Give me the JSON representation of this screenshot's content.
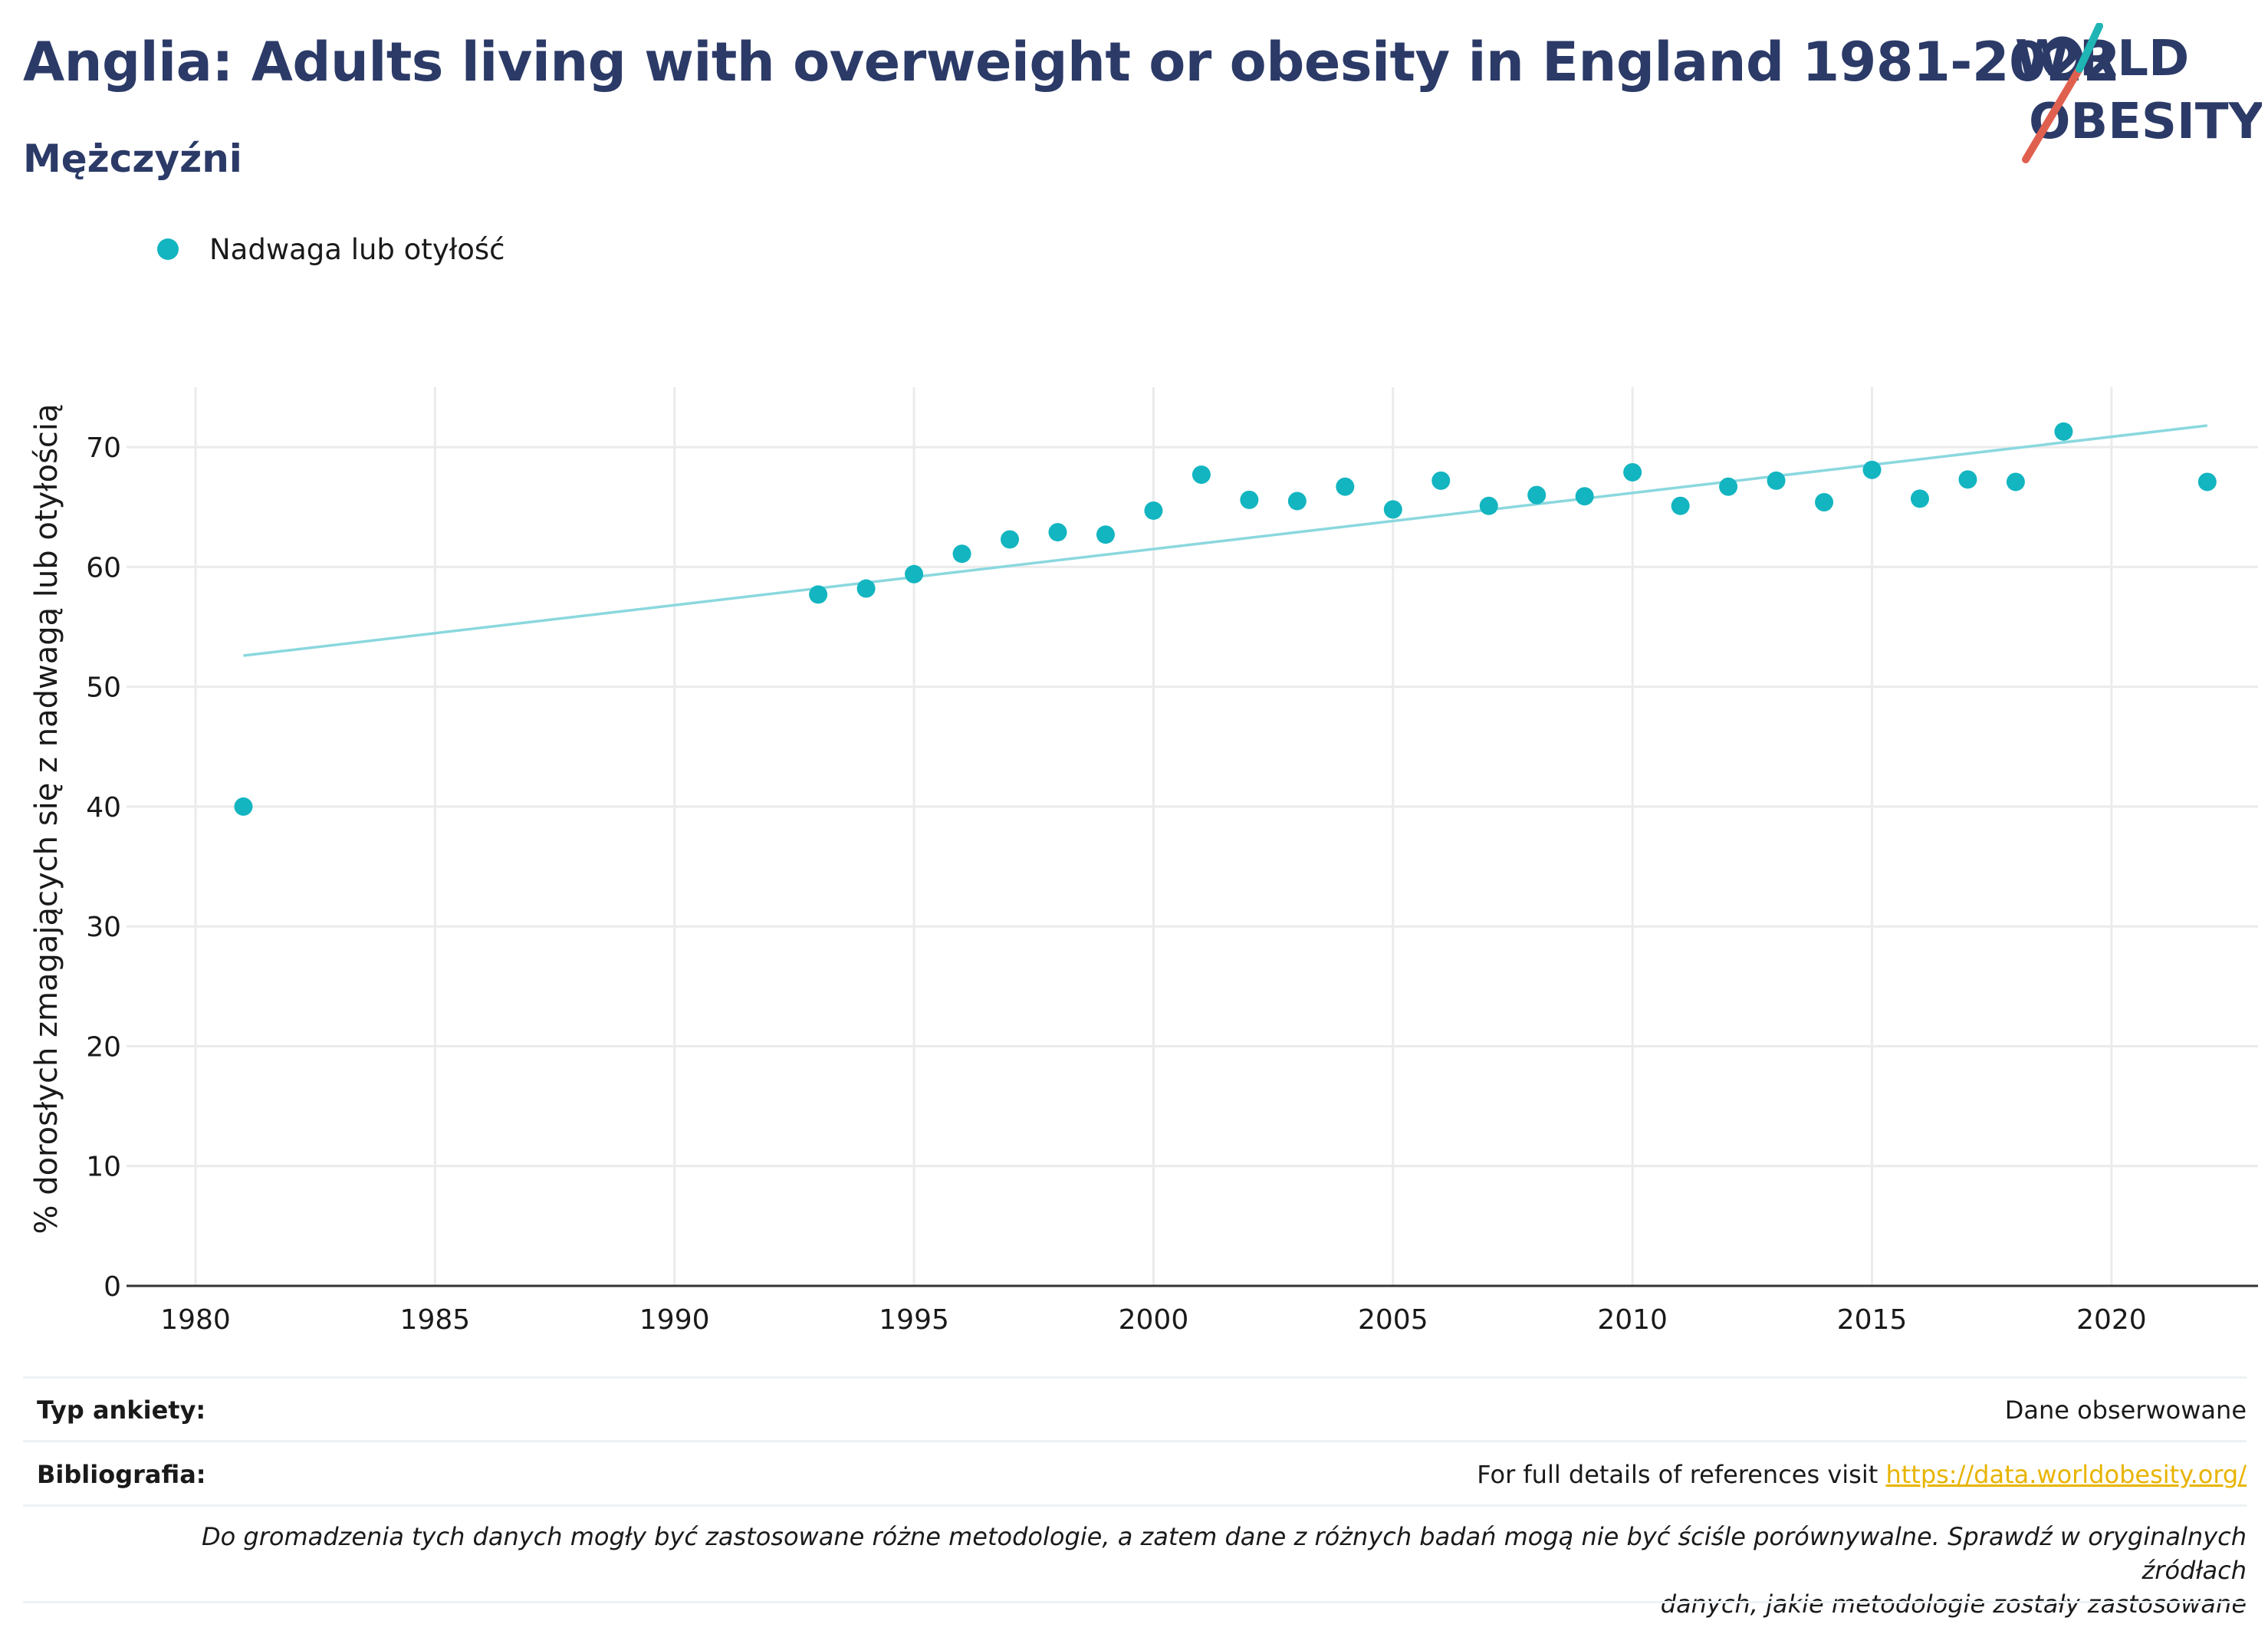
{
  "header": {
    "title": "Anglia: Adults living with overweight or obesity in England 1981-2022",
    "subtitle": "Mężczyźni"
  },
  "logo": {
    "line1": "WORLD",
    "line2": "OBESITY",
    "colors": {
      "text": "#2b3a67",
      "accent_teal": "#1fb5b5",
      "accent_red": "#e0604f"
    }
  },
  "colors": {
    "points": "#12b5c0",
    "trend": "#8ad8de",
    "title": "#2b3a67",
    "link": "#e8b400"
  },
  "chart_data": {
    "type": "scatter",
    "title": "Anglia: Adults living with overweight or obesity in England 1981-2022",
    "subtitle": "Mężczyźni",
    "ylabel": "% dorosłych zmagających się z nadwagą lub otyłością",
    "xlabel": "",
    "xlim": [
      1980,
      2024.5
    ],
    "ylim": [
      0,
      75
    ],
    "xticks": [
      1980,
      1985,
      1990,
      1995,
      2000,
      2005,
      2010,
      2015,
      2020
    ],
    "yticks": [
      0,
      10,
      20,
      30,
      40,
      50,
      60,
      70
    ],
    "grid": true,
    "legend_position": "top-left",
    "series": [
      {
        "name": "Nadwaga lub otyłość",
        "points": [
          {
            "x": 1981,
            "y": 40.0
          },
          {
            "x": 1993,
            "y": 57.7
          },
          {
            "x": 1994,
            "y": 58.2
          },
          {
            "x": 1995,
            "y": 59.4
          },
          {
            "x": 1996,
            "y": 61.1
          },
          {
            "x": 1997,
            "y": 62.3
          },
          {
            "x": 1998,
            "y": 62.9
          },
          {
            "x": 1999,
            "y": 62.7
          },
          {
            "x": 2000,
            "y": 64.7
          },
          {
            "x": 2001,
            "y": 67.7
          },
          {
            "x": 2002,
            "y": 65.6
          },
          {
            "x": 2003,
            "y": 65.5
          },
          {
            "x": 2004,
            "y": 66.7
          },
          {
            "x": 2005,
            "y": 64.8
          },
          {
            "x": 2006,
            "y": 67.2
          },
          {
            "x": 2007,
            "y": 65.1
          },
          {
            "x": 2008,
            "y": 66.0
          },
          {
            "x": 2009,
            "y": 65.9
          },
          {
            "x": 2010,
            "y": 67.9
          },
          {
            "x": 2011,
            "y": 65.1
          },
          {
            "x": 2012,
            "y": 66.7
          },
          {
            "x": 2013,
            "y": 67.2
          },
          {
            "x": 2014,
            "y": 65.4
          },
          {
            "x": 2015,
            "y": 68.1
          },
          {
            "x": 2016,
            "y": 65.7
          },
          {
            "x": 2017,
            "y": 67.3
          },
          {
            "x": 2018,
            "y": 67.1
          },
          {
            "x": 2019,
            "y": 71.3
          },
          {
            "x": 2022,
            "y": 67.1
          }
        ]
      }
    ],
    "trendline": {
      "x": [
        1981,
        2022
      ],
      "y": [
        52.6,
        71.8
      ]
    }
  },
  "footer": {
    "survey_label": "Typ ankiety:",
    "survey_value": "Dane obserwowane",
    "bib_label": "Bibliografia:",
    "bib_text": "For full details of references visit ",
    "bib_link": "https://data.worldobesity.org/",
    "note_line1": "Do gromadzenia tych danych mogły być zastosowane różne metodologie, a zatem dane z różnych badań mogą nie być ściśle porównywalne. Sprawdź w oryginalnych źródłach",
    "note_line2": "danych, jakie metodologie zostały zastosowane"
  }
}
